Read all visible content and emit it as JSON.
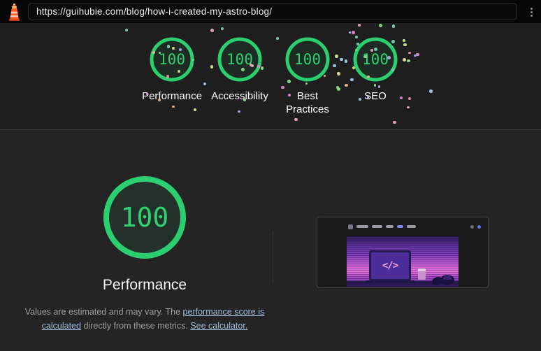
{
  "header": {
    "url": "https://guihubie.com/blog/how-i-created-my-astro-blog/",
    "app_icon": "lighthouse-icon",
    "overflow_menu_icon": "kebab-menu-icon"
  },
  "scores": {
    "categories": [
      {
        "label": "Performance",
        "score": "100"
      },
      {
        "label": "Accessibility",
        "score": "100"
      },
      {
        "label": "Best Practices",
        "score": "100"
      },
      {
        "label": "SEO",
        "score": "100"
      }
    ]
  },
  "detail": {
    "score": "100",
    "label": "Performance",
    "disclaimer": {
      "pre": "Values are estimated and may vary. The ",
      "link1": "performance score is calculated",
      "mid": " directly from these metrics. ",
      "link2": "See calculator."
    }
  },
  "thumbnail": {
    "code_glyph": "</>"
  },
  "colors": {
    "pass_green": "#2bcf6f",
    "gauge_fill": "rgba(43,207,111,0.08)",
    "link_blue": "#9cb9dc",
    "confetti_palette": [
      "#e9a9c5",
      "#8fd98f",
      "#e6e392",
      "#b3a5e8",
      "#a5c8e8",
      "#e8b28f",
      "#7fcbb5",
      "#d98fc8",
      "#c9e88f",
      "#e88f9a"
    ]
  }
}
